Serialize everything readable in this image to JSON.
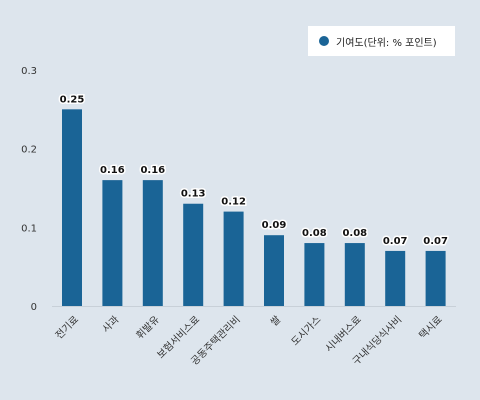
{
  "chart_data": {
    "type": "bar",
    "categories": [
      "전기료",
      "사과",
      "휘발유",
      "보험서비스료",
      "공동주택관리비",
      "쌀",
      "도시가스",
      "시내버스료",
      "구내식당식사비",
      "택시료"
    ],
    "series": [
      {
        "name": "기여도(단위: % 포인트)",
        "values": [
          0.25,
          0.16,
          0.16,
          0.13,
          0.12,
          0.09,
          0.08,
          0.08,
          0.07,
          0.07
        ]
      }
    ],
    "data_labels": [
      "0.25",
      "0.16",
      "0.16",
      "0.13",
      "0.12",
      "0.09",
      "0.08",
      "0.08",
      "0.07",
      "0.07"
    ],
    "yticks": [
      "0",
      "0.1",
      "0.2",
      "0.3"
    ],
    "ylim": [
      0,
      0.3
    ],
    "legend_position": "top-right",
    "grid": false,
    "bar_color": "#1a6496"
  }
}
